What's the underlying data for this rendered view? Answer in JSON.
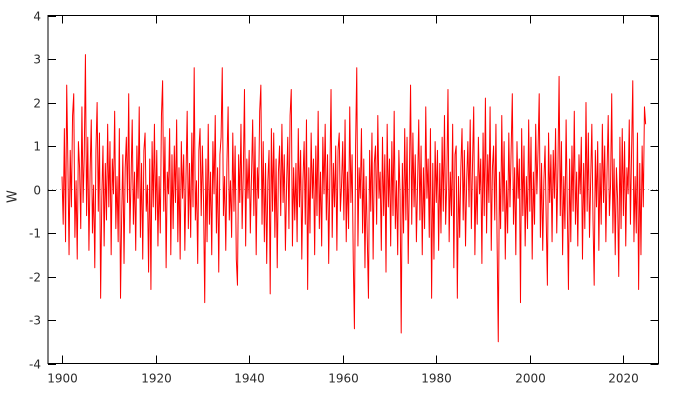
{
  "figure": {
    "background": "#ffffff",
    "border_color": "#000000",
    "tick_label_color": "#2b2b2b",
    "zero_line_color": "#b0b0b0"
  },
  "chart_data": {
    "type": "line",
    "title": "",
    "xlabel": "",
    "ylabel": "W",
    "xlim": [
      1897,
      2027.5
    ],
    "ylim": [
      -4,
      4
    ],
    "x_ticks": [
      1900,
      1920,
      1940,
      1960,
      1980,
      2000,
      2020
    ],
    "y_ticks": [
      -4,
      -3,
      -2,
      -1,
      0,
      1,
      2,
      3,
      4
    ],
    "grid": false,
    "legend": "none",
    "zero_line": true,
    "x_start": 1900,
    "x_step": 0.25,
    "series": [
      {
        "name": "W",
        "color": "#ff0000",
        "values": [
          0.3,
          -0.8,
          1.4,
          -1.2,
          2.4,
          0.6,
          -1.5,
          0.9,
          -0.4,
          1.7,
          2.2,
          -1.1,
          0.2,
          -1.6,
          1.1,
          0.5,
          -0.9,
          1.9,
          -0.3,
          0.8,
          3.1,
          -0.6,
          1.2,
          -1.4,
          0.4,
          1.6,
          -1.0,
          0.1,
          -1.8,
          0.9,
          2.0,
          -0.5,
          1.3,
          -2.5,
          -0.2,
          1.0,
          -1.3,
          0.6,
          -0.7,
          1.5,
          -0.4,
          1.1,
          -1.5,
          0.7,
          -0.1,
          1.8,
          -0.9,
          0.3,
          -1.2,
          1.4,
          -2.5,
          -0.6,
          0.8,
          -1.7,
          0.5,
          1.2,
          -0.3,
          2.2,
          -1.0,
          0.2,
          1.6,
          -0.8,
          0.4,
          -1.4,
          1.0,
          -0.2,
          1.9,
          -1.1,
          0.6,
          -1.6,
          0.9,
          1.3,
          -0.5,
          0.1,
          -1.9,
          0.7,
          -2.3,
          1.1,
          -0.4,
          1.5,
          -0.7,
          0.9,
          -1.3,
          0.3,
          -1.0,
          1.7,
          2.5,
          -0.5,
          1.2,
          -1.8,
          0.4,
          -0.1,
          1.4,
          -1.5,
          0.8,
          -0.9,
          1.0,
          -0.3,
          1.6,
          -1.2,
          0.5,
          -1.6,
          1.1,
          -0.2,
          0.8,
          -1.4,
          0.3,
          1.8,
          -0.9,
          0.6,
          -1.1,
          1.3,
          -0.4,
          2.8,
          -0.7,
          0.2,
          -1.7,
          0.9,
          1.4,
          -0.6,
          1.0,
          -0.3,
          -2.6,
          0.7,
          -1.2,
          1.5,
          -0.8,
          0.4,
          -1.5,
          1.1,
          -0.1,
          1.7,
          -1.0,
          0.5,
          -1.9,
          0.8,
          1.2,
          2.8,
          -0.6,
          0.3,
          -1.4,
          0.6,
          1.9,
          -0.7,
          0.2,
          -1.1,
          1.3,
          -0.5,
          1.0,
          -1.6,
          -2.2,
          0.8,
          -0.3,
          1.5,
          -0.9,
          0.4,
          2.3,
          -1.3,
          0.7,
          -0.2,
          0.9,
          -1.0,
          0.3,
          1.6,
          -0.6,
          1.2,
          -1.5,
          0.5,
          -0.2,
          1.8,
          2.4,
          -0.8,
          1.1,
          -1.2,
          0.6,
          -1.7,
          0.2,
          0.9,
          -2.4,
          1.4,
          -0.5,
          1.3,
          -1.1,
          0.7,
          -1.8,
          0.4,
          1.0,
          -0.6,
          1.5,
          -0.3,
          0.8,
          -1.4,
          0.1,
          1.2,
          -0.9,
          1.7,
          2.3,
          -1.3,
          0.5,
          -0.7,
          0.6,
          -1.2,
          1.4,
          -0.4,
          0.9,
          -1.6,
          0.2,
          1.1,
          -0.8,
          1.6,
          -2.3,
          0.5,
          -1.0,
          1.3,
          -0.2,
          0.7,
          -1.5,
          1.0,
          -0.6,
          1.8,
          -0.9,
          0.4,
          -1.3,
          1.2,
          -0.1,
          1.5,
          -0.7,
          0.8,
          -1.7,
          0.3,
          2.3,
          -1.1,
          0.6,
          -0.4,
          1.0,
          -1.4,
          0.9,
          1.3,
          -0.5,
          0.1,
          1.1,
          -0.7,
          1.6,
          -1.2,
          0.4,
          -0.9,
          1.9,
          -0.3,
          0.8,
          -1.6,
          -3.2,
          1.0,
          2.8,
          -1.3,
          0.5,
          -0.2,
          1.4,
          -1.0,
          0.7,
          -1.8,
          0.3,
          -1.1,
          -2.5,
          0.9,
          -0.5,
          1.3,
          -1.6,
          0.6,
          1.0,
          -0.8,
          1.7,
          -0.2,
          0.4,
          -1.4,
          1.2,
          -0.6,
          0.8,
          -1.9,
          1.5,
          -0.4,
          0.7,
          -1.3,
          1.1,
          -0.6,
          1.8,
          -0.9,
          0.2,
          -1.5,
          0.9,
          -0.1,
          -3.3,
          0.6,
          -1.0,
          1.4,
          -0.7,
          1.2,
          -1.7,
          0.3,
          2.4,
          -0.8,
          1.3,
          -0.4,
          0.8,
          -1.2,
          0.1,
          1.6,
          -0.7,
          1.0,
          -1.5,
          0.5,
          -0.9,
          1.9,
          -0.2,
          0.7,
          -1.1,
          1.4,
          -2.5,
          0.6,
          -1.6,
          1.1,
          -0.3,
          0.9,
          -1.4,
          0.6,
          -1.0,
          1.2,
          -0.5,
          1.7,
          -0.8,
          0.2,
          2.3,
          -1.2,
          0.4,
          -0.6,
          1.5,
          -1.8,
          0.8,
          1.0,
          -2.5,
          0.3,
          -1.1,
          0.5,
          1.4,
          -0.7,
          0.9,
          -1.3,
          0.2,
          1.1,
          -0.4,
          1.6,
          -0.9,
          0.6,
          1.9,
          -1.5,
          0.3,
          -0.8,
          1.2,
          -0.1,
          0.7,
          -1.7,
          1.3,
          -0.6,
          2.1,
          -1.0,
          0.8,
          -0.3,
          1.9,
          -1.4,
          0.5,
          1.0,
          -0.7,
          1.5,
          -1.2,
          -3.5,
          0.4,
          -0.9,
          1.7,
          -0.5,
          1.1,
          -1.6,
          0.2,
          -1.0,
          1.3,
          -0.4,
          0.9,
          2.2,
          -0.8,
          0.5,
          -1.5,
          1.1,
          -0.2,
          0.7,
          -2.6,
          1.4,
          -0.6,
          1.0,
          -1.3,
          0.3,
          -0.9,
          1.6,
          -0.5,
          1.2,
          -1.6,
          0.4,
          -0.8,
          1.5,
          -0.1,
          0.9,
          2.2,
          -1.1,
          0.6,
          -1.4,
          0.2,
          1.0,
          -0.7,
          -2.2,
          1.3,
          -0.3,
          0.8,
          -1.2,
          0.9,
          -0.2,
          1.4,
          -1.0,
          0.5,
          2.6,
          -0.6,
          1.1,
          -1.5,
          0.3,
          -0.9,
          1.6,
          -0.4,
          -2.3,
          0.7,
          -1.2,
          1.0,
          -0.5,
          1.8,
          -0.8,
          0.4,
          -1.3,
          0.8,
          -0.1,
          1.2,
          -1.6,
          0.6,
          -0.9,
          2.0,
          -0.5,
          1.3,
          -1.1,
          0.2,
          1.5,
          -0.7,
          -2.2,
          0.9,
          -0.4,
          1.1,
          -1.4,
          0.6,
          -0.8,
          1.5,
          -0.3,
          1.0,
          -1.2,
          0.4,
          1.7,
          -0.6,
          0.1,
          2.2,
          -1.0,
          0.7,
          -1.5,
          0.5,
          -0.2,
          -2.0,
          1.2,
          -0.9,
          1.4,
          -0.6,
          1.1,
          -1.3,
          0.5,
          -0.1,
          1.6,
          -0.8,
          0.9,
          2.5,
          -1.2,
          0.3,
          -1.0,
          1.3,
          -2.3,
          0.6,
          -1.5,
          1.0,
          -0.4,
          1.9,
          1.5
        ]
      }
    ]
  }
}
